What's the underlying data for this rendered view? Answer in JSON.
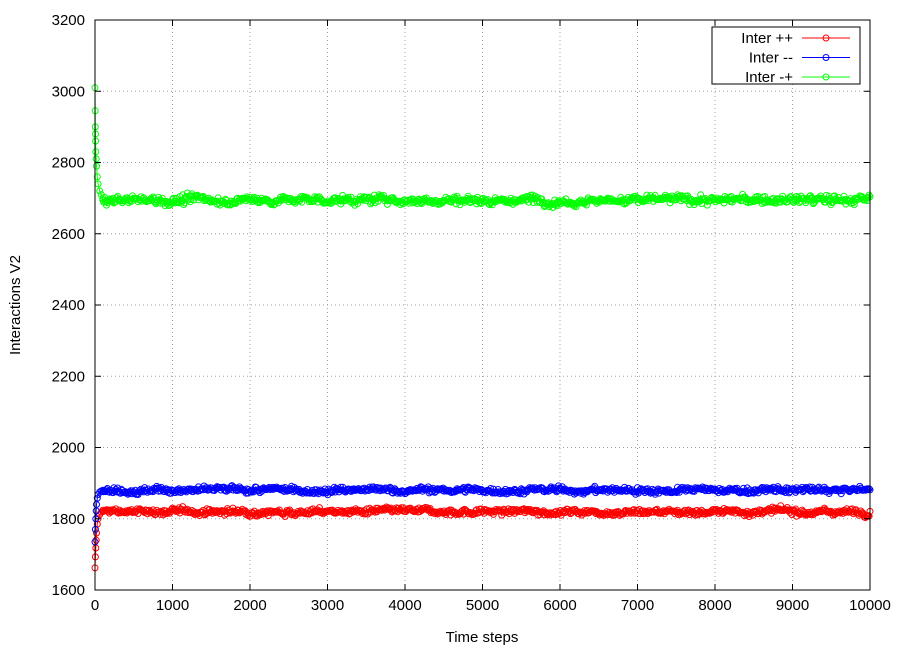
{
  "chart_data": {
    "type": "scatter",
    "title": "",
    "xlabel": "Time steps",
    "ylabel": "Interactions V2",
    "xlim": [
      0,
      10000
    ],
    "ylim": [
      1600,
      3200
    ],
    "xticks": [
      0,
      1000,
      2000,
      3000,
      4000,
      5000,
      6000,
      7000,
      8000,
      9000,
      10000
    ],
    "yticks": [
      1600,
      1800,
      2000,
      2200,
      2400,
      2600,
      2800,
      3000,
      3200
    ],
    "grid": true,
    "legend_position": "top-right",
    "series": [
      {
        "name": "Inter ++",
        "color": "#ff0000",
        "marker": "open-circle",
        "initial_x": [
          0,
          5,
          10,
          15,
          20,
          30,
          40,
          60,
          80,
          100
        ],
        "initial_y": [
          1662,
          1693,
          1718,
          1740,
          1760,
          1785,
          1800,
          1812,
          1818,
          1820
        ],
        "x_start": 100,
        "x_end": 10000,
        "steady_mean": 1820,
        "steady_spread": 10
      },
      {
        "name": "Inter --",
        "color": "#0000ff",
        "marker": "open-circle",
        "initial_x": [
          0,
          5,
          10,
          15,
          20,
          30,
          40,
          60,
          80,
          100
        ],
        "initial_y": [
          1735,
          1770,
          1800,
          1822,
          1840,
          1858,
          1868,
          1875,
          1878,
          1880
        ],
        "x_start": 100,
        "x_end": 10000,
        "steady_mean": 1880,
        "steady_spread": 10
      },
      {
        "name": "Inter -+",
        "color": "#00ff00",
        "marker": "open-circle",
        "initial_x": [
          0,
          2,
          4,
          6,
          8,
          10,
          15,
          20,
          30,
          40,
          60,
          80,
          100
        ],
        "initial_y": [
          3010,
          2945,
          2900,
          2880,
          2860,
          2830,
          2810,
          2790,
          2760,
          2740,
          2720,
          2710,
          2700
        ],
        "x_start": 100,
        "x_end": 10000,
        "steady_mean": 2695,
        "steady_spread": 14
      }
    ]
  }
}
